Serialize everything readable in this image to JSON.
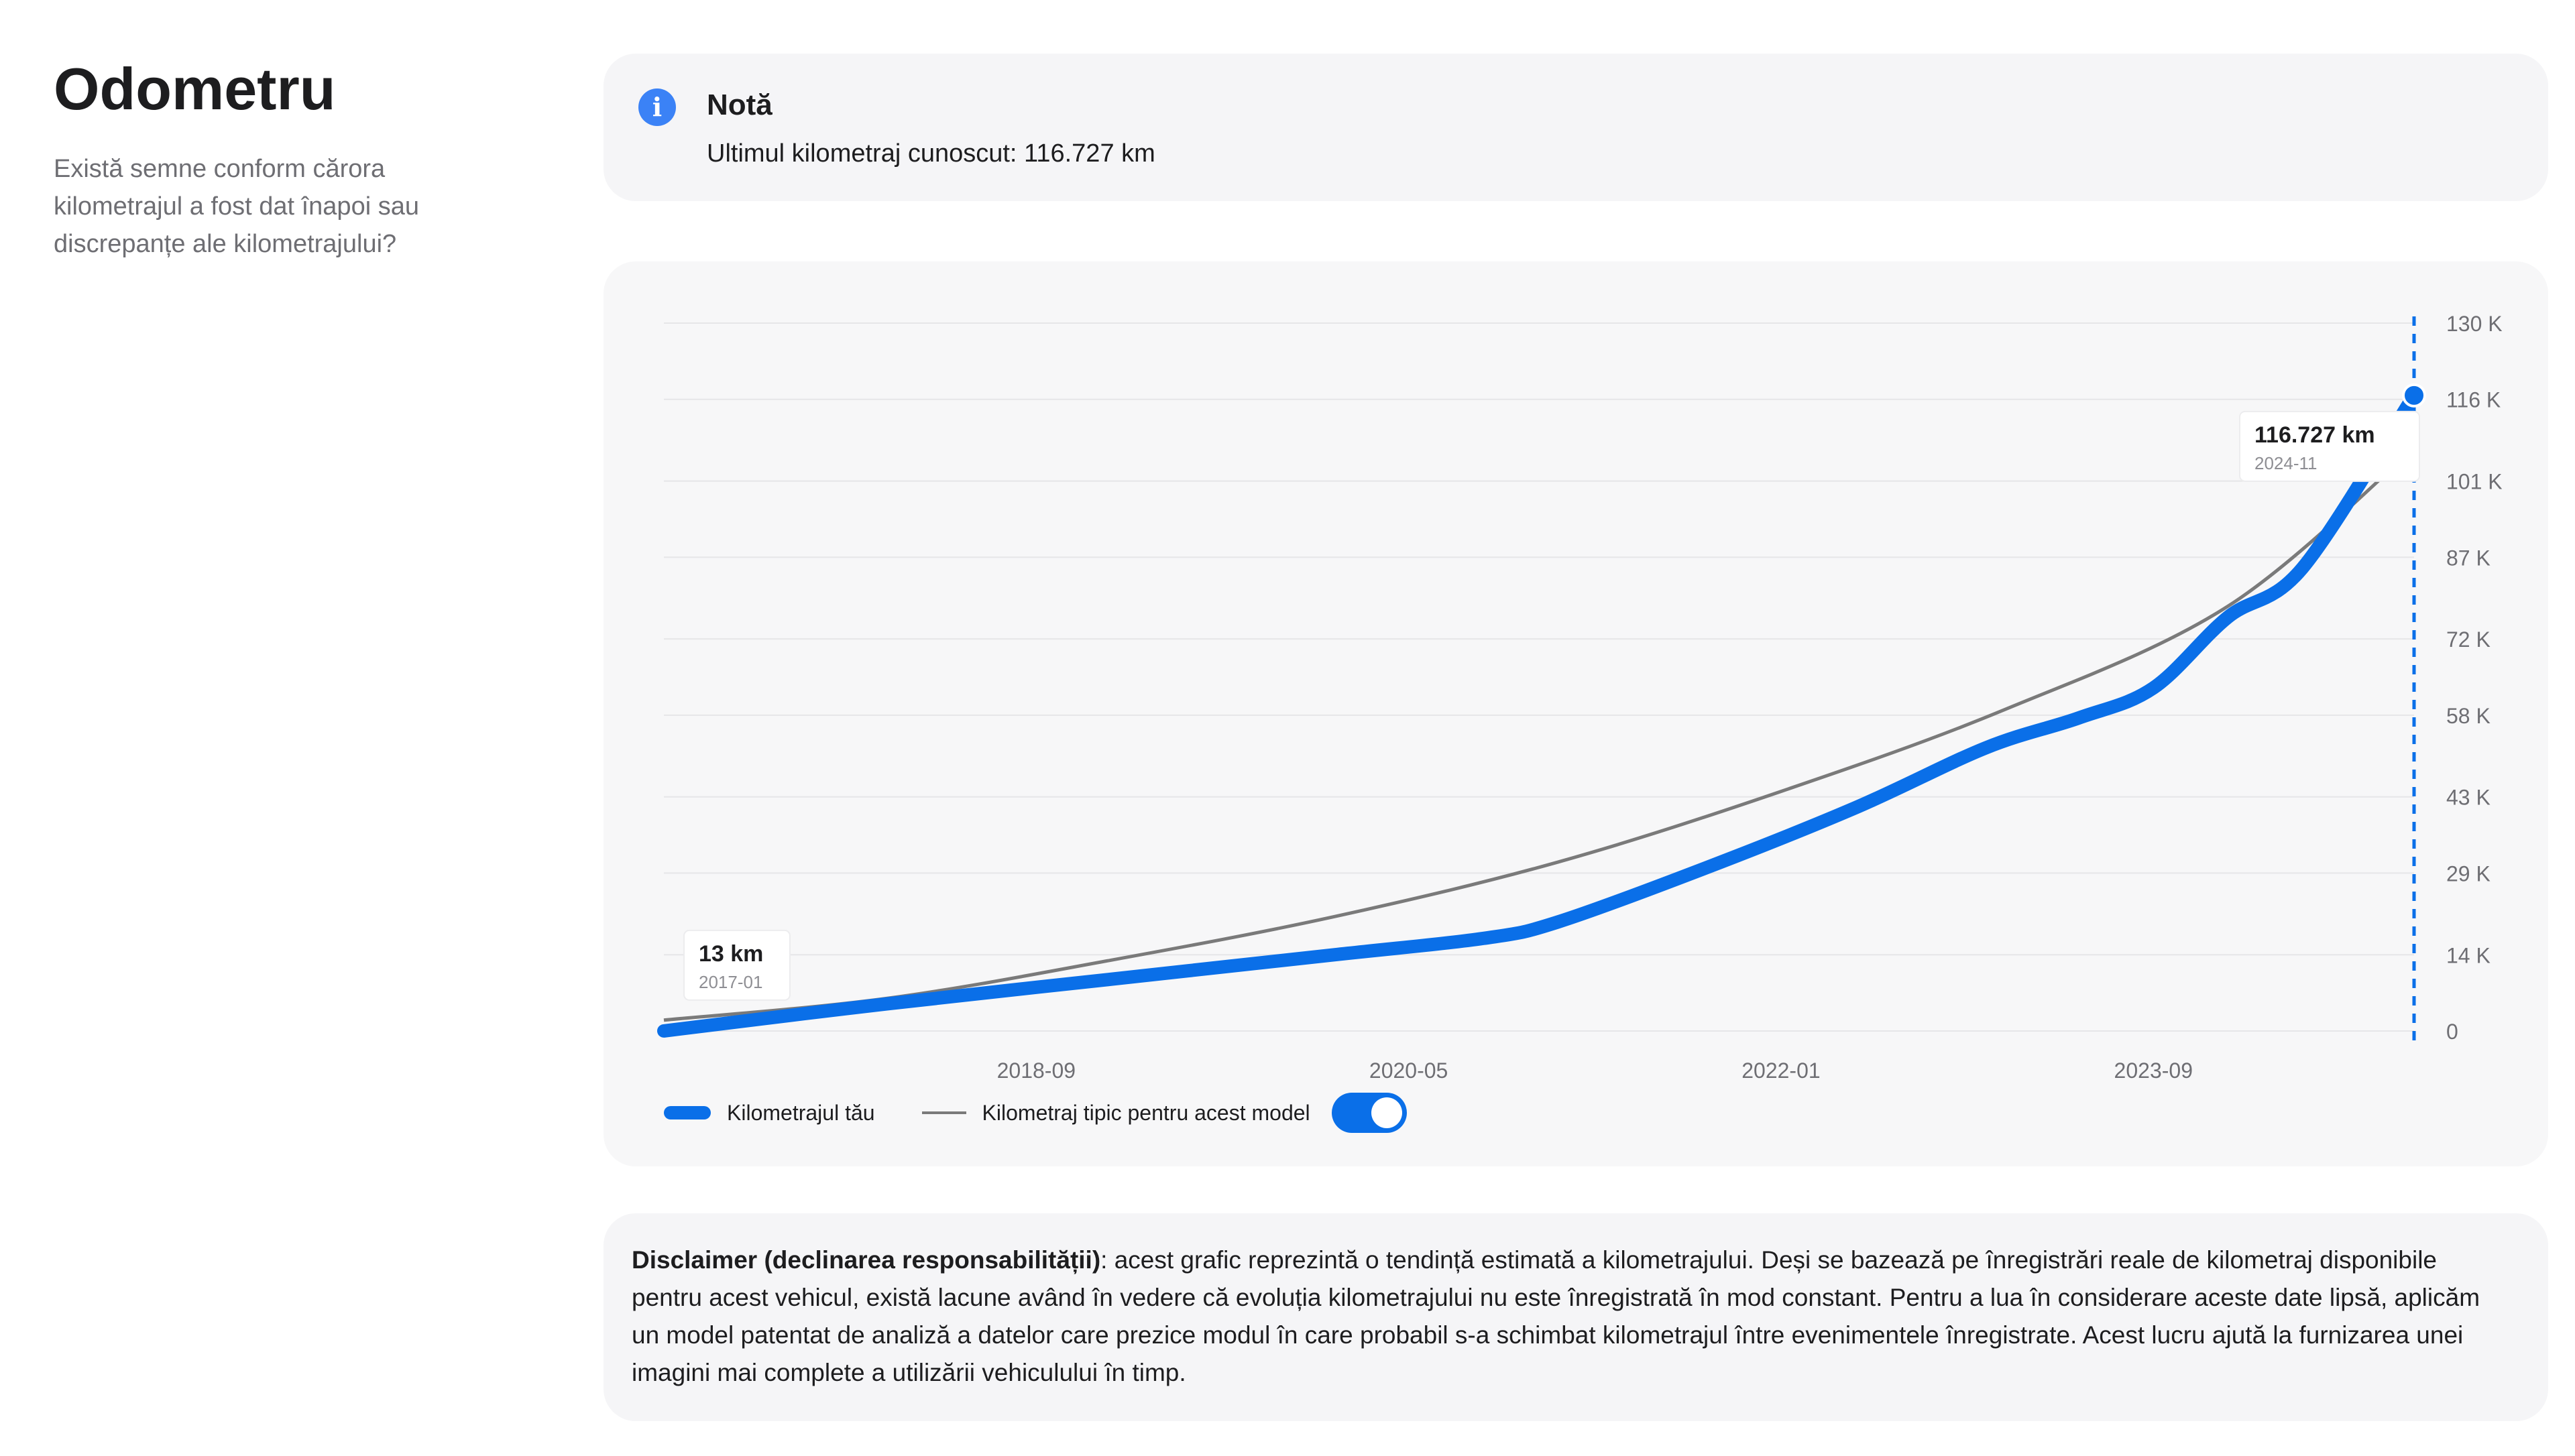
{
  "header": {
    "title": "Odometru",
    "description": "Există semne conform cărora kilometrajul a fost dat înapoi sau discrepanțe ale kilometrajului?"
  },
  "note": {
    "icon": "info-icon",
    "title": "Notă",
    "text": "Ultimul kilometraj cunoscut: 116.727 km"
  },
  "chart": {
    "tooltip_start": {
      "value": "13 km",
      "date": "2017-01"
    },
    "tooltip_end": {
      "value": "116.727 km",
      "date": "2024-11"
    },
    "legend": {
      "series_1": "Kilometrajul tău",
      "series_2": "Kilometraj tipic pentru acest model"
    },
    "toggle_on": true,
    "colors": {
      "your_mileage": "#0a6fe8",
      "typical": "#7a7a7a",
      "marker_line": "#0a6fe8"
    }
  },
  "chart_data": {
    "type": "line",
    "x_tick_labels": [
      "2018-09",
      "2020-05",
      "2022-01",
      "2023-09"
    ],
    "y_tick_labels": [
      "0",
      "14 K",
      "29 K",
      "43 K",
      "58 K",
      "72 K",
      "87 K",
      "101 K",
      "116 K",
      "130 K"
    ],
    "y_ticks": [
      0,
      14000,
      29000,
      43000,
      58000,
      72000,
      87000,
      101000,
      116000,
      130000
    ],
    "ylim": [
      0,
      130000
    ],
    "xlim": [
      "2017-01",
      "2024-11"
    ],
    "y_axis_position": "right",
    "grid": true,
    "series": [
      {
        "name": "Kilometrajul tău",
        "color": "#0a6fe8",
        "points": [
          [
            "2017-01",
            13
          ],
          [
            "2018-01",
            5000
          ],
          [
            "2019-01",
            9500
          ],
          [
            "2020-01",
            14000
          ],
          [
            "2020-09",
            17000
          ],
          [
            "2021-01",
            20000
          ],
          [
            "2021-09",
            30000
          ],
          [
            "2022-05",
            41000
          ],
          [
            "2022-12",
            52000
          ],
          [
            "2023-05",
            57500
          ],
          [
            "2023-09",
            63000
          ],
          [
            "2024-01",
            76000
          ],
          [
            "2024-05",
            85000
          ],
          [
            "2024-11",
            116727
          ]
        ]
      },
      {
        "name": "Kilometraj tipic pentru acest model",
        "color": "#7a7a7a",
        "points": [
          [
            "2017-01",
            2000
          ],
          [
            "2018-01",
            6000
          ],
          [
            "2019-01",
            13000
          ],
          [
            "2020-01",
            21000
          ],
          [
            "2021-01",
            31000
          ],
          [
            "2022-01",
            44000
          ],
          [
            "2023-01",
            59000
          ],
          [
            "2024-01",
            78000
          ],
          [
            "2024-11",
            107000
          ]
        ]
      }
    ],
    "annotations": [
      {
        "date": "2017-01",
        "label": "13 km"
      },
      {
        "date": "2024-11",
        "label": "116.727 km"
      }
    ]
  },
  "disclaimer": {
    "bold": "Disclaimer (declinarea responsabilității)",
    "text": ": acest grafic reprezintă o tendință estimată a kilometrajului. Deși se bazează pe înregistrări reale de kilometraj disponibile pentru acest vehicul, există lacune având în vedere că evoluția kilometrajului nu este înregistrată în mod constant. Pentru a lua în considerare aceste date lipsă, aplicăm un model patentat de analiză a datelor care prezice modul în care probabil s-a schimbat kilometrajul între evenimentele înregistrate. Acest lucru ajută la furnizarea unei imagini mai complete a utilizării vehiculului în timp."
  }
}
